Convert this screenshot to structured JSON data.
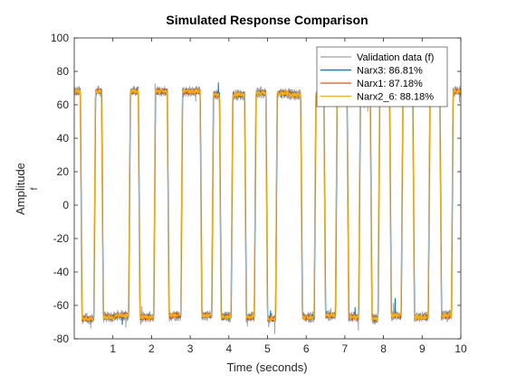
{
  "chart_data": {
    "type": "line",
    "title": "Simulated Response Comparison",
    "xlabel": "Time (seconds)",
    "ylabel": "Amplitude",
    "channel_label": "f",
    "xlim": [
      0,
      10
    ],
    "ylim": [
      -80,
      100
    ],
    "xticks": [
      1,
      2,
      3,
      4,
      5,
      6,
      7,
      8,
      9,
      10
    ],
    "yticks": [
      -80,
      -60,
      -40,
      -20,
      0,
      20,
      40,
      60,
      80,
      100
    ],
    "legend_position": "top-right",
    "series": [
      {
        "name": "Validation data (f)",
        "color": "#a0a0a0"
      },
      {
        "name": "Narx3: 86.81%",
        "color": "#0072bd"
      },
      {
        "name": "Narx1: 87.18%",
        "color": "#d95319"
      },
      {
        "name": "Narx2_6: 88.18%",
        "color": "#edb120"
      }
    ],
    "segments": [
      [
        0.0,
        0.15,
        68
      ],
      [
        0.15,
        0.5,
        -68
      ],
      [
        0.5,
        0.7,
        68
      ],
      [
        0.7,
        1.05,
        -67
      ],
      [
        1.05,
        1.4,
        -66
      ],
      [
        1.4,
        1.65,
        68
      ],
      [
        1.65,
        2.05,
        -67
      ],
      [
        2.05,
        2.4,
        68
      ],
      [
        2.4,
        2.75,
        -66
      ],
      [
        2.75,
        2.95,
        68
      ],
      [
        2.95,
        3.25,
        68
      ],
      [
        3.25,
        3.55,
        -66
      ],
      [
        3.55,
        3.75,
        66
      ],
      [
        3.75,
        4.05,
        -67
      ],
      [
        4.05,
        4.4,
        66
      ],
      [
        4.4,
        4.65,
        -67
      ],
      [
        4.65,
        4.95,
        67
      ],
      [
        4.95,
        5.2,
        -68
      ],
      [
        5.2,
        5.55,
        67
      ],
      [
        5.55,
        5.85,
        66
      ],
      [
        5.85,
        6.2,
        -67
      ],
      [
        6.2,
        6.45,
        66
      ],
      [
        6.45,
        6.75,
        -66
      ],
      [
        6.75,
        7.05,
        66
      ],
      [
        7.05,
        7.35,
        -67
      ],
      [
        7.35,
        7.65,
        66
      ],
      [
        7.65,
        7.85,
        -68
      ],
      [
        7.85,
        8.15,
        66
      ],
      [
        8.15,
        8.45,
        -66
      ],
      [
        8.45,
        8.75,
        66
      ],
      [
        8.75,
        9.15,
        -67
      ],
      [
        9.15,
        9.45,
        66
      ],
      [
        9.45,
        9.75,
        -66
      ],
      [
        9.75,
        10.0,
        68
      ]
    ]
  }
}
